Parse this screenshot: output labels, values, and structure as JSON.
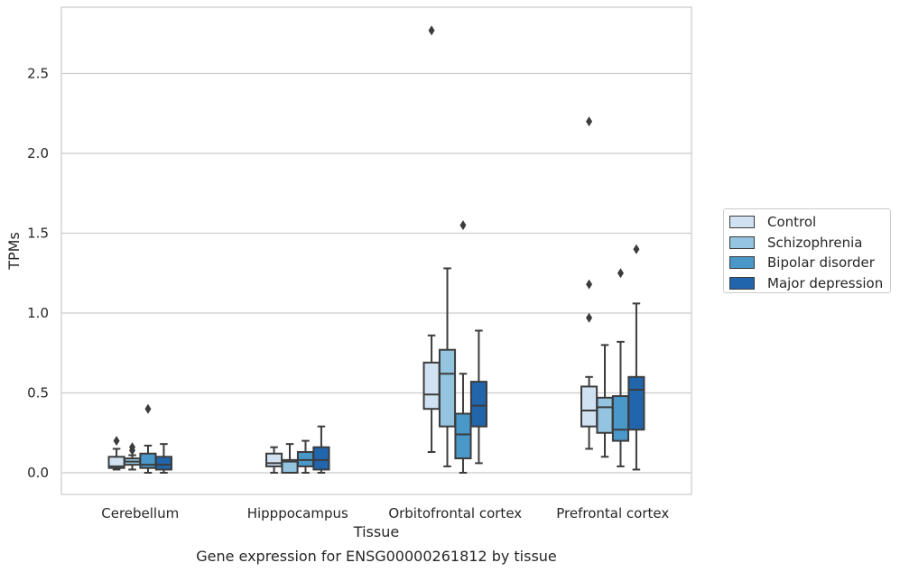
{
  "chart_data": {
    "type": "box",
    "title": "",
    "caption": "Gene expression for ENSG00000261812 by tissue",
    "xlabel": "Tissue",
    "ylabel": "TPMs",
    "ylim": [
      -0.13,
      2.92
    ],
    "yticks": [
      "0.0",
      "0.5",
      "1.0",
      "1.5",
      "2.0",
      "2.5"
    ],
    "grid": "horizontal",
    "legend_position": "right-center",
    "categories": [
      "Cerebellum",
      "Hipppocampus",
      "Orbitofrontal cortex",
      "Prefrontal cortex"
    ],
    "series": [
      {
        "name": "Control",
        "color": "#d0e1f2",
        "boxes": [
          {
            "whislo": 0.02,
            "q1": 0.03,
            "med": 0.04,
            "q3": 0.1,
            "whishi": 0.15,
            "fliers": [
              0.2
            ]
          },
          {
            "whislo": 0.0,
            "q1": 0.04,
            "med": 0.06,
            "q3": 0.12,
            "whishi": 0.16,
            "fliers": []
          },
          {
            "whislo": 0.13,
            "q1": 0.4,
            "med": 0.49,
            "q3": 0.69,
            "whishi": 0.86,
            "fliers": [
              2.77
            ]
          },
          {
            "whislo": 0.15,
            "q1": 0.29,
            "med": 0.39,
            "q3": 0.54,
            "whishi": 0.6,
            "fliers": [
              0.97,
              1.18,
              2.2
            ]
          }
        ]
      },
      {
        "name": "Schizophrenia",
        "color": "#94c4df",
        "boxes": [
          {
            "whislo": 0.02,
            "q1": 0.05,
            "med": 0.07,
            "q3": 0.09,
            "whishi": 0.11,
            "fliers": [
              0.14,
              0.16
            ]
          },
          {
            "whislo": 0.0,
            "q1": 0.0,
            "med": 0.07,
            "q3": 0.08,
            "whishi": 0.18,
            "fliers": []
          },
          {
            "whislo": 0.04,
            "q1": 0.29,
            "med": 0.62,
            "q3": 0.77,
            "whishi": 1.28,
            "fliers": []
          },
          {
            "whislo": 0.1,
            "q1": 0.25,
            "med": 0.41,
            "q3": 0.47,
            "whishi": 0.8,
            "fliers": []
          }
        ]
      },
      {
        "name": "Bipolar disorder",
        "color": "#4a98c9",
        "boxes": [
          {
            "whislo": 0.0,
            "q1": 0.03,
            "med": 0.05,
            "q3": 0.12,
            "whishi": 0.17,
            "fliers": [
              0.4
            ]
          },
          {
            "whislo": 0.0,
            "q1": 0.04,
            "med": 0.08,
            "q3": 0.13,
            "whishi": 0.2,
            "fliers": []
          },
          {
            "whislo": 0.0,
            "q1": 0.09,
            "med": 0.24,
            "q3": 0.37,
            "whishi": 0.62,
            "fliers": [
              1.55
            ]
          },
          {
            "whislo": 0.04,
            "q1": 0.2,
            "med": 0.27,
            "q3": 0.48,
            "whishi": 0.82,
            "fliers": [
              1.25
            ]
          }
        ]
      },
      {
        "name": "Major depression",
        "color": "#2166ac",
        "boxes": [
          {
            "whislo": 0.0,
            "q1": 0.02,
            "med": 0.05,
            "q3": 0.1,
            "whishi": 0.18,
            "fliers": []
          },
          {
            "whislo": 0.0,
            "q1": 0.02,
            "med": 0.08,
            "q3": 0.16,
            "whishi": 0.29,
            "fliers": []
          },
          {
            "whislo": 0.06,
            "q1": 0.29,
            "med": 0.42,
            "q3": 0.57,
            "whishi": 0.89,
            "fliers": []
          },
          {
            "whislo": 0.02,
            "q1": 0.27,
            "med": 0.52,
            "q3": 0.6,
            "whishi": 1.06,
            "fliers": [
              1.4
            ]
          }
        ]
      }
    ]
  }
}
